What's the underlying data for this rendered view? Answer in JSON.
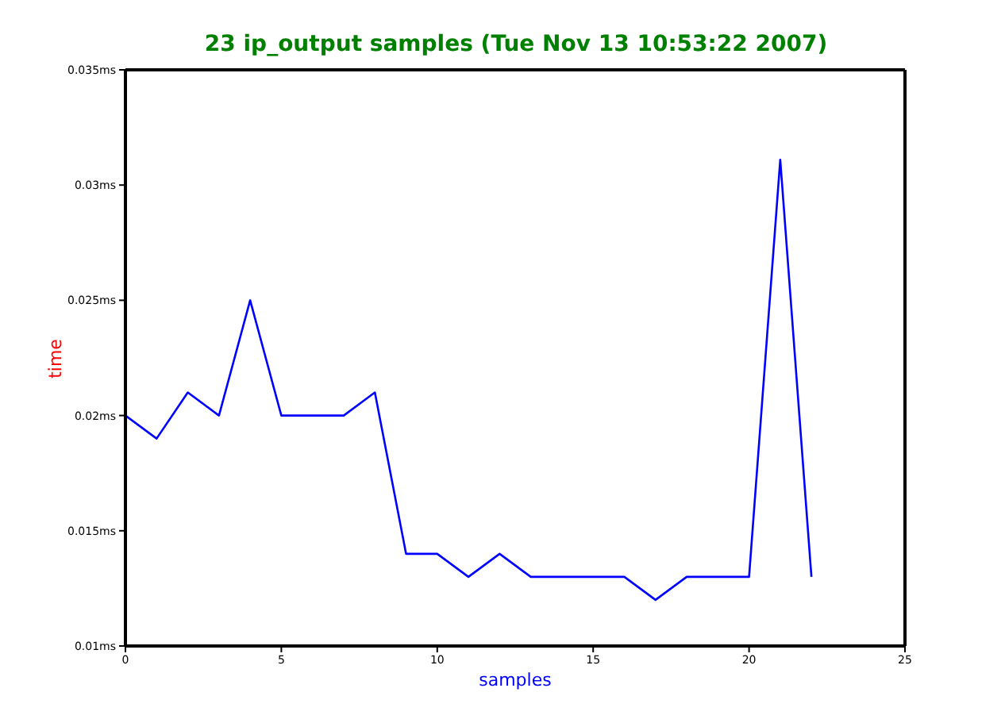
{
  "chart_data": {
    "type": "line",
    "title": "23 ip_output samples (Tue Nov 13 10:53:22 2007)",
    "xlabel": "samples",
    "ylabel": "time",
    "x": [
      0,
      1,
      2,
      3,
      4,
      5,
      6,
      7,
      8,
      9,
      10,
      11,
      12,
      13,
      14,
      15,
      16,
      17,
      18,
      19,
      20,
      21,
      22
    ],
    "series": [
      {
        "color": "#0000ff",
        "values": [
          0.02,
          0.019,
          0.021,
          0.02,
          0.025,
          0.02,
          0.02,
          0.02,
          0.021,
          0.014,
          0.014,
          0.013,
          0.014,
          0.013,
          0.013,
          0.013,
          0.013,
          0.012,
          0.013,
          0.013,
          0.013,
          0.0311,
          0.013
        ]
      }
    ],
    "xlim": [
      0,
      25
    ],
    "xticks": [
      0,
      5,
      10,
      15,
      20,
      25
    ],
    "ylim": [
      0.01,
      0.035
    ],
    "yticks": [
      {
        "value": 0.01,
        "label": "0.01ms"
      },
      {
        "value": 0.015,
        "label": "0.015ms"
      },
      {
        "value": 0.02,
        "label": "0.02ms"
      },
      {
        "value": 0.025,
        "label": "0.025ms"
      },
      {
        "value": 0.03,
        "label": "0.03ms"
      },
      {
        "value": 0.035,
        "label": "0.035ms"
      }
    ],
    "grid": false,
    "legend": false,
    "marker": "none",
    "line_style": "solid"
  }
}
